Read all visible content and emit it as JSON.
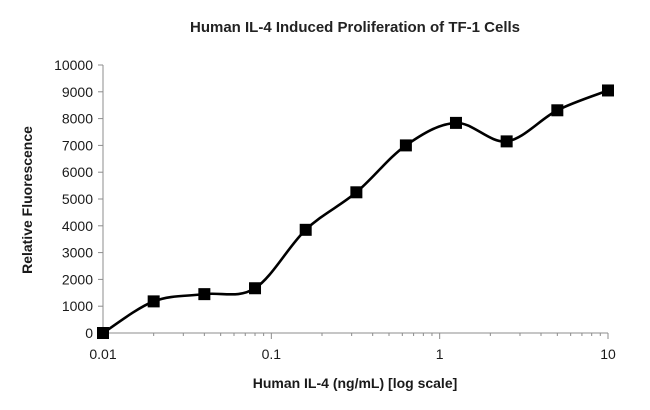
{
  "chart_data": {
    "type": "line",
    "title": "Human IL-4 Induced Proliferation of TF-1 Cells",
    "xlabel": "Human IL-4 (ng/mL) [log scale]",
    "ylabel": "Relative  Fluorescence",
    "x_scale": "log",
    "xlim": [
      0.01,
      10
    ],
    "ylim": [
      0,
      10000
    ],
    "x_ticks": [
      0.01,
      0.1,
      1,
      10
    ],
    "x_tick_labels": [
      "0.01",
      "0.1",
      "1",
      "10"
    ],
    "y_ticks": [
      0,
      1000,
      2000,
      3000,
      4000,
      5000,
      6000,
      7000,
      8000,
      9000,
      10000
    ],
    "y_tick_labels": [
      "0",
      "1000",
      "2000",
      "3000",
      "4000",
      "5000",
      "6000",
      "7000",
      "8000",
      "9000",
      "10000"
    ],
    "grid": false,
    "legend": "none",
    "marker": "square",
    "series_color": "#000000",
    "series": [
      {
        "x": [
          0.01,
          0.02,
          0.04,
          0.08,
          0.16,
          0.32,
          0.63,
          1.25,
          2.5,
          5,
          10
        ],
        "values": [
          0,
          1180,
          1450,
          1670,
          3850,
          5250,
          7000,
          7840,
          7150,
          8310,
          9050
        ]
      }
    ]
  }
}
